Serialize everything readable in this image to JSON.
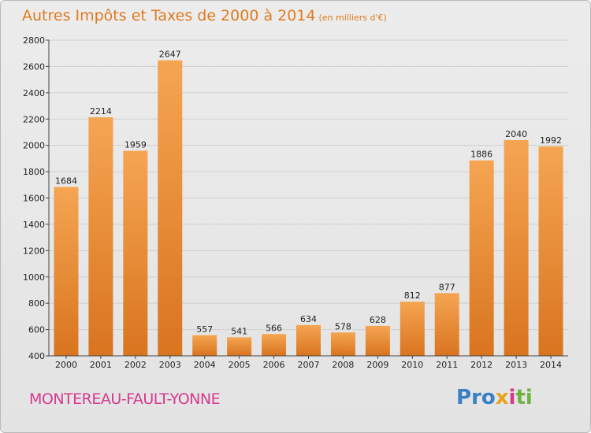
{
  "header": {
    "title": "Autres Impôts et Taxes de 2000 à 2014",
    "unit": "(en milliers d'€)"
  },
  "footer": {
    "city": "MONTEREAU-FAULT-YONNE",
    "logo_letters": [
      "P",
      "r",
      "o",
      "x",
      "i",
      "t",
      "i"
    ],
    "logo_colors": [
      "#3a7fc4",
      "#3a7fc4",
      "#3a7fc4",
      "#e8a21a",
      "#d43a8c",
      "#6cb33f",
      "#6cb33f"
    ]
  },
  "colors": {
    "bar_top": "#f5a552",
    "bar_bottom": "#d9741f",
    "grid": "#cfcfcf",
    "axis": "#444444"
  },
  "chart_data": {
    "type": "bar",
    "title": "Autres Impôts et Taxes de 2000 à 2014",
    "subtitle": "(en milliers d'€)",
    "categories": [
      "2000",
      "2001",
      "2002",
      "2003",
      "2004",
      "2005",
      "2006",
      "2007",
      "2008",
      "2009",
      "2010",
      "2011",
      "2012",
      "2013",
      "2014"
    ],
    "values": [
      1684,
      2214,
      1959,
      2647,
      557,
      541,
      566,
      634,
      578,
      628,
      812,
      877,
      1886,
      2040,
      1992
    ],
    "ylim": [
      400,
      2800
    ],
    "yticks": [
      400,
      600,
      800,
      1000,
      1200,
      1400,
      1600,
      1800,
      2000,
      2200,
      2400,
      2600,
      2800
    ],
    "grid": true,
    "xlabel": "",
    "ylabel": ""
  }
}
